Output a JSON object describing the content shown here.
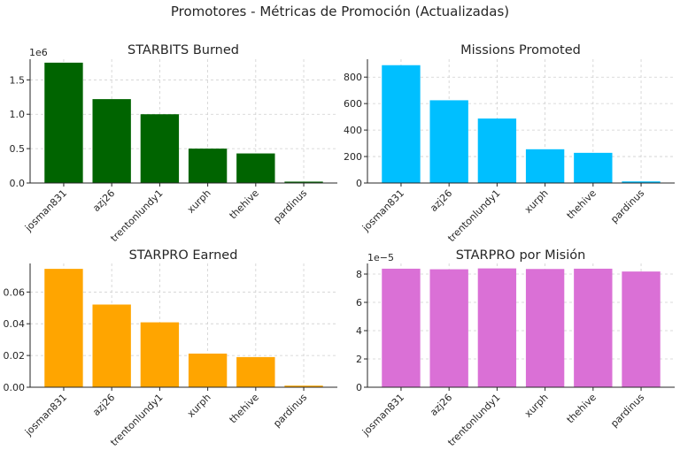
{
  "figure": {
    "title": "Promotores - Métricas de Promoción (Actualizadas)"
  },
  "chart_data": [
    {
      "type": "bar",
      "title": "STARBITS Burned",
      "categories": [
        "josman831",
        "azj26",
        "trentonlundy1",
        "xurph",
        "thehive",
        "pardinus"
      ],
      "values": [
        1750000,
        1220000,
        1000000,
        500000,
        430000,
        20000
      ],
      "ylim": [
        0,
        1800000
      ],
      "yticks": [
        0,
        500000,
        1000000,
        1500000
      ],
      "ytick_labels": [
        "0.0",
        "0.5",
        "1.0",
        "1.5"
      ],
      "offset_label": "1e6",
      "color": "#006400",
      "grid": true
    },
    {
      "type": "bar",
      "title": "Missions Promoted",
      "categories": [
        "josman831",
        "azj26",
        "trentonlundy1",
        "xurph",
        "thehive",
        "pardinus"
      ],
      "values": [
        890,
        625,
        487,
        255,
        228,
        12
      ],
      "ylim": [
        0,
        935
      ],
      "yticks": [
        0,
        200,
        400,
        600,
        800
      ],
      "ytick_labels": [
        "0",
        "200",
        "400",
        "600",
        "800"
      ],
      "offset_label": "",
      "color": "#00BFFF",
      "grid": true
    },
    {
      "type": "bar",
      "title": "STARPRO Earned",
      "categories": [
        "josman831",
        "azj26",
        "trentonlundy1",
        "xurph",
        "thehive",
        "pardinus"
      ],
      "values": [
        0.0746,
        0.0521,
        0.0409,
        0.0212,
        0.019,
        0.001
      ],
      "ylim": [
        0,
        0.078
      ],
      "yticks": [
        0,
        0.02,
        0.04,
        0.06
      ],
      "ytick_labels": [
        "0.00",
        "0.02",
        "0.04",
        "0.06"
      ],
      "offset_label": "",
      "color": "#FFA500",
      "grid": true
    },
    {
      "type": "bar",
      "title": "STARPRO por Misión",
      "categories": [
        "josman831",
        "azj26",
        "trentonlundy1",
        "xurph",
        "thehive",
        "pardinus"
      ],
      "values": [
        8.38e-05,
        8.34e-05,
        8.4e-05,
        8.36e-05,
        8.38e-05,
        8.18e-05
      ],
      "ylim": [
        0,
        8.75e-05
      ],
      "yticks": [
        0,
        2e-05,
        4e-05,
        6e-05,
        8e-05
      ],
      "ytick_labels": [
        "0",
        "2",
        "4",
        "6",
        "8"
      ],
      "offset_label": "1e−5",
      "color": "#DA70D6",
      "grid": true
    }
  ]
}
